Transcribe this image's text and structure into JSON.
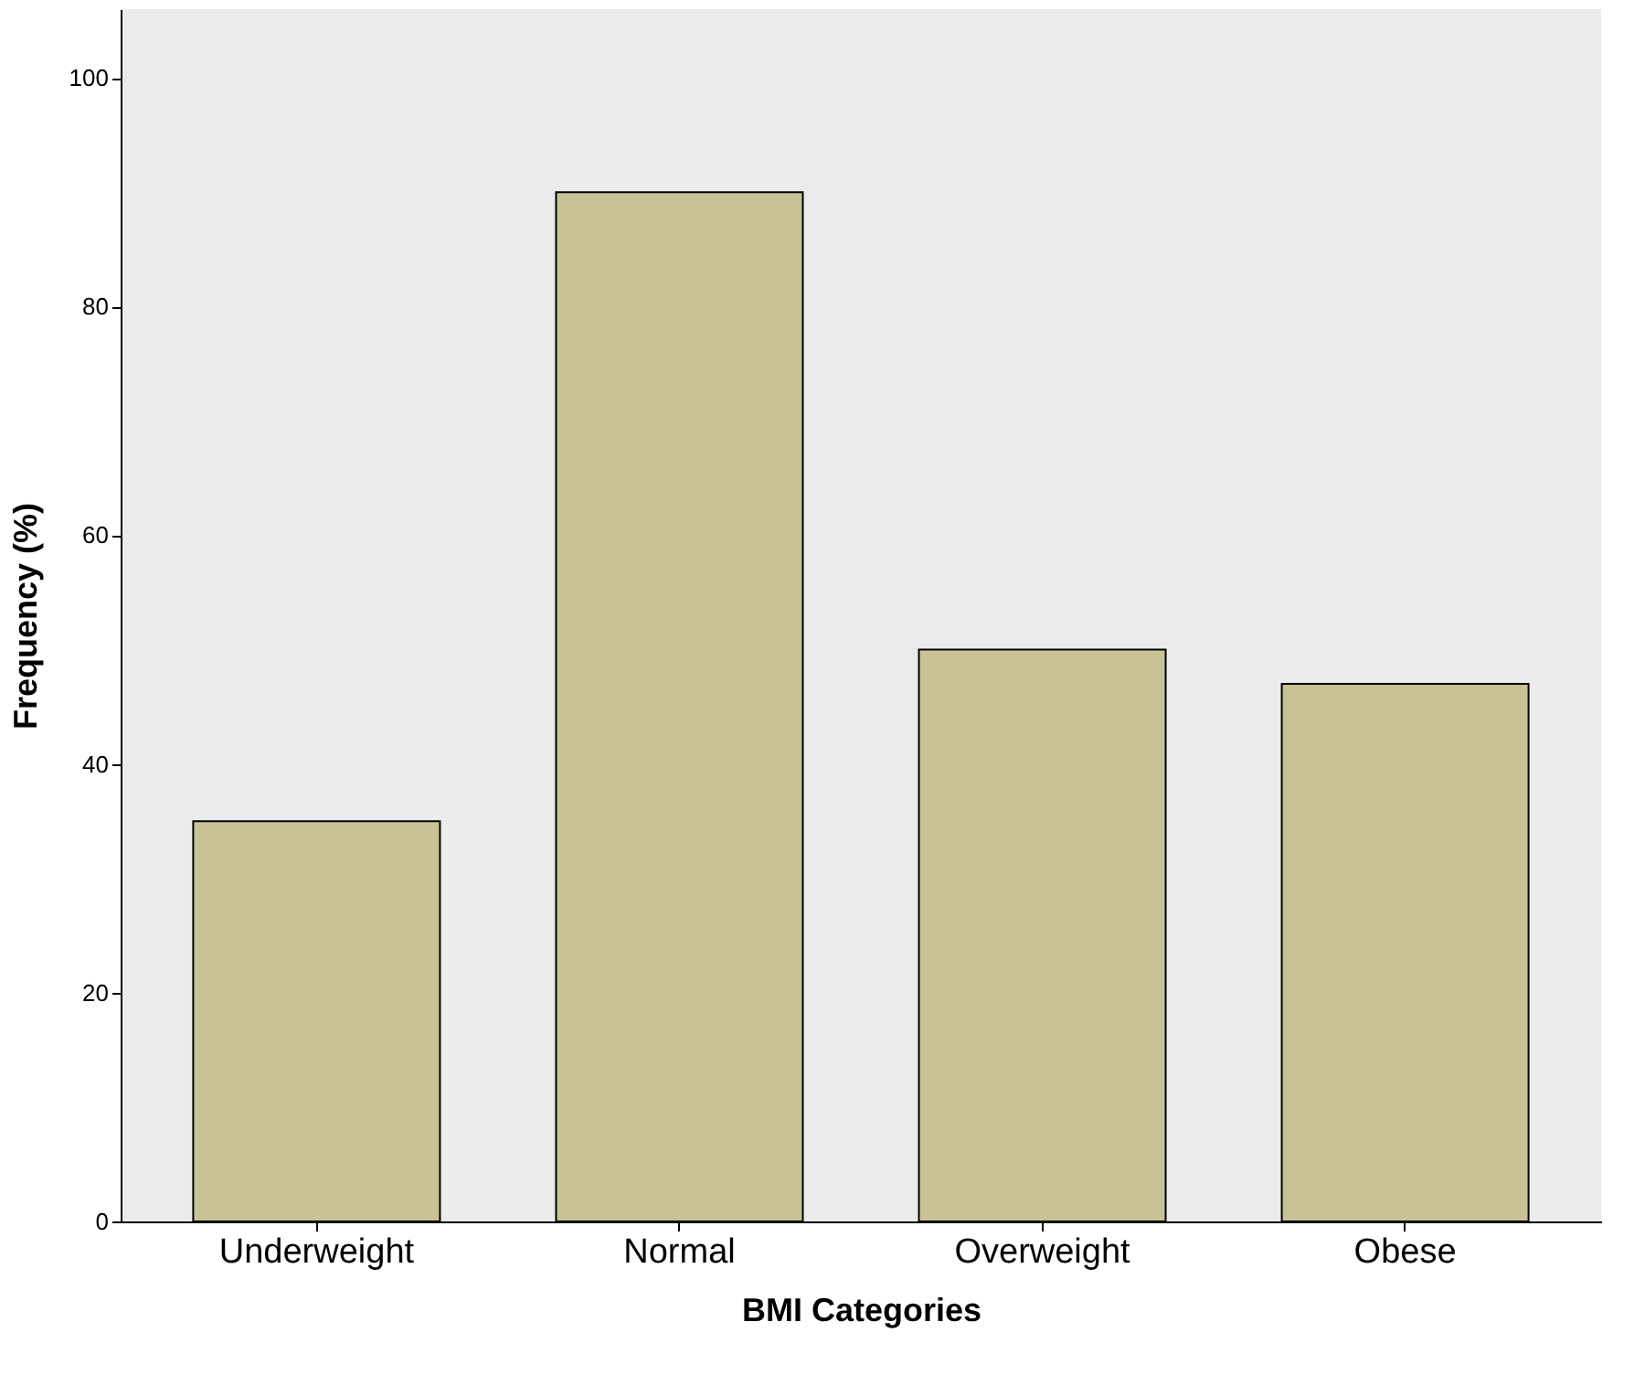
{
  "chart_data": {
    "type": "bar",
    "xlabel": "BMI Categories",
    "ylabel": "Frequency (%)",
    "categories": [
      "Underweight",
      "Normal",
      "Overweight",
      "Obese"
    ],
    "values": [
      35,
      90,
      50,
      47
    ],
    "color": "#c8c396",
    "ylim": [
      0,
      106
    ],
    "yticks": [
      0,
      20,
      40,
      60,
      80,
      100
    ],
    "grid": false
  }
}
